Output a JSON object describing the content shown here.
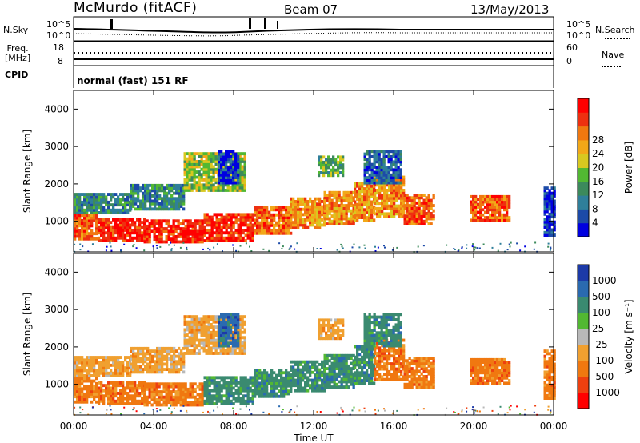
{
  "header": {
    "station": "McMurdo (fitACF)",
    "beam": "Beam 07",
    "date": "13/May/2013",
    "mode": "normal (fast) 151 RF"
  },
  "labels": {
    "nsky": "N.Sky",
    "freq_line1": "Freq.",
    "freq_line2": "[MHz]",
    "cpid": "CPID",
    "nsearch": "N.Search",
    "nave": "Nave",
    "noise_hi": "10^5",
    "noise_lo": "10^0",
    "freq_hi": "18",
    "freq_lo": "8",
    "nave_hi": "60",
    "nave_lo": "0"
  },
  "chart_data": [
    {
      "type": "heatmap",
      "name": "power",
      "xlabel": "Time UT",
      "ylabel": "Slant Range [km]",
      "xticks": [
        "00:00",
        "04:00",
        "08:00",
        "12:00",
        "16:00",
        "20:00",
        "00:00"
      ],
      "yticks": [
        "1000",
        "2000",
        "3000",
        "4000"
      ],
      "ylim": [
        180,
        4500
      ],
      "colorbar": {
        "label": "Power [dB]",
        "ticks": [
          "4",
          "8",
          "12",
          "16",
          "20",
          "24",
          "28"
        ],
        "colors": [
          "#0000e0",
          "#1c4aa8",
          "#2f7f9a",
          "#3c8a5c",
          "#52b832",
          "#d8c820",
          "#f2a818",
          "#f07810",
          "#ee3010",
          "#ff0000"
        ]
      }
    },
    {
      "type": "heatmap",
      "name": "velocity",
      "xlabel": "Time UT",
      "ylabel": "Slant Range [km]",
      "xticks": [
        "00:00",
        "04:00",
        "08:00",
        "12:00",
        "16:00",
        "20:00",
        "00:00"
      ],
      "yticks": [
        "1000",
        "2000",
        "3000",
        "4000"
      ],
      "ylim": [
        180,
        4500
      ],
      "colorbar": {
        "label": "Velocity [m s⁻¹]",
        "ticks": [
          "1000",
          "500",
          "100",
          "25",
          "-25",
          "-100",
          "-500",
          "-1000"
        ],
        "colors": [
          "#1c3aa8",
          "#2a6ab0",
          "#3a8a70",
          "#52b832",
          "#b8b8b8",
          "#f0a030",
          "#f07810",
          "#ee4010",
          "#ff0000"
        ]
      }
    }
  ]
}
